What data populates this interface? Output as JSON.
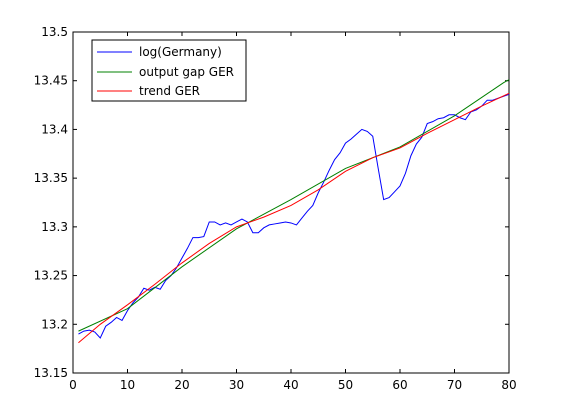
{
  "chart_data": {
    "type": "line",
    "title": "",
    "xlabel": "",
    "ylabel": "",
    "xlim": [
      0,
      80
    ],
    "ylim": [
      13.15,
      13.5
    ],
    "xticks": [
      0,
      10,
      20,
      30,
      40,
      50,
      60,
      70,
      80
    ],
    "yticks": [
      13.15,
      13.2,
      13.25,
      13.3,
      13.35,
      13.4,
      13.45,
      13.5
    ],
    "xtick_labels": [
      "0",
      "10",
      "20",
      "30",
      "40",
      "50",
      "60",
      "70",
      "80"
    ],
    "ytick_labels": [
      "13.15",
      "13.2",
      "13.25",
      "13.3",
      "13.35",
      "13.4",
      "13.45",
      "13.5"
    ],
    "grid": false,
    "legend_position": "top-left",
    "series": [
      {
        "name": "log(Germany)",
        "color": "#0000ff",
        "x": [
          1,
          2,
          3,
          4,
          5,
          6,
          7,
          8,
          9,
          10,
          11,
          12,
          13,
          14,
          15,
          16,
          17,
          18,
          19,
          20,
          21,
          22,
          23,
          24,
          25,
          26,
          27,
          28,
          29,
          30,
          31,
          32,
          33,
          34,
          35,
          36,
          37,
          38,
          39,
          40,
          41,
          42,
          43,
          44,
          45,
          46,
          47,
          48,
          49,
          50,
          51,
          52,
          53,
          54,
          55,
          56,
          57,
          58,
          59,
          60,
          61,
          62,
          63,
          64,
          65,
          66,
          67,
          68,
          69,
          70,
          71,
          72,
          73,
          74,
          75,
          76,
          77,
          78,
          79,
          80
        ],
        "y": [
          13.19,
          13.193,
          13.194,
          13.192,
          13.186,
          13.198,
          13.202,
          13.207,
          13.204,
          13.214,
          13.222,
          13.228,
          13.237,
          13.235,
          13.238,
          13.236,
          13.245,
          13.25,
          13.258,
          13.268,
          13.278,
          13.289,
          13.289,
          13.29,
          13.305,
          13.305,
          13.302,
          13.304,
          13.302,
          13.305,
          13.308,
          13.305,
          13.294,
          13.294,
          13.299,
          13.302,
          13.303,
          13.304,
          13.305,
          13.304,
          13.302,
          13.309,
          13.316,
          13.322,
          13.335,
          13.346,
          13.358,
          13.369,
          13.376,
          13.386,
          13.39,
          13.395,
          13.4,
          13.398,
          13.393,
          13.36,
          13.328,
          13.33,
          13.336,
          13.342,
          13.355,
          13.373,
          13.385,
          13.392,
          13.406,
          13.408,
          13.411,
          13.412,
          13.415,
          13.415,
          13.412,
          13.41,
          13.418,
          13.42,
          13.424,
          13.43,
          13.43,
          13.432,
          13.434,
          13.436
        ]
      },
      {
        "name": "output gap GER",
        "color": "#008000",
        "x": [
          1,
          10,
          20,
          30,
          40,
          50,
          60,
          70,
          79,
          80
        ],
        "y": [
          13.193,
          13.216,
          13.259,
          13.298,
          13.328,
          13.36,
          13.382,
          13.414,
          13.448,
          13.451
        ]
      },
      {
        "name": "trend GER",
        "color": "#ff0000",
        "x": [
          1,
          5,
          10,
          15,
          20,
          25,
          30,
          35,
          40,
          45,
          50,
          55,
          60,
          65,
          70,
          75,
          80
        ],
        "y": [
          13.181,
          13.2,
          13.22,
          13.241,
          13.263,
          13.283,
          13.3,
          13.31,
          13.322,
          13.338,
          13.357,
          13.371,
          13.381,
          13.396,
          13.41,
          13.424,
          13.437
        ]
      }
    ]
  }
}
